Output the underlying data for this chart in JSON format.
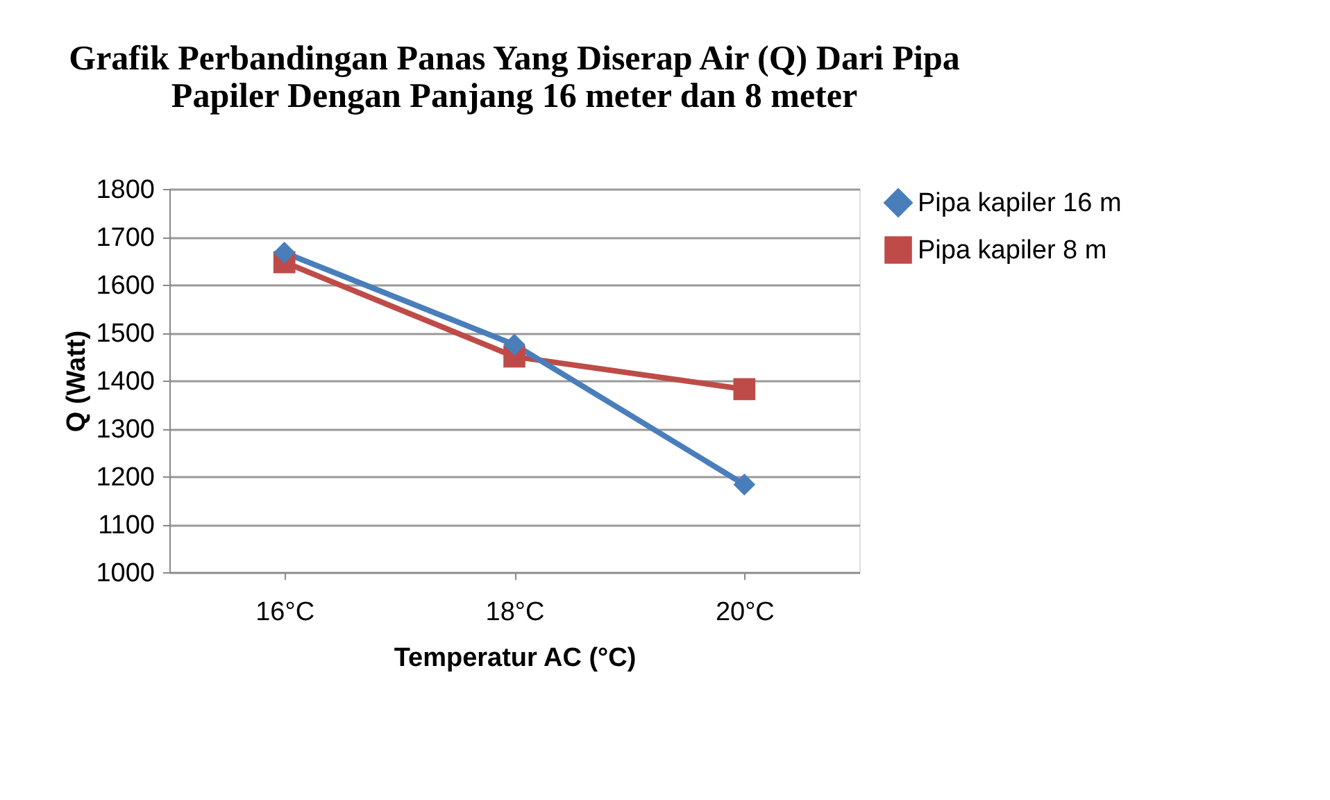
{
  "chart_data": {
    "type": "line",
    "title": [
      "Grafik Perbandingan Panas Yang Diserap Air (Q) Dari Pipa",
      "Papiler Dengan Panjang 16 meter dan 8 meter"
    ],
    "xlabel": "Temperatur AC (°C)",
    "ylabel": "Q (Watt)",
    "categories": [
      "16°C",
      "18°C",
      "20°C"
    ],
    "series": [
      {
        "name": "Pipa kapiler 16 m",
        "color": "#4a7ebb",
        "marker": "diamond",
        "values": [
          1667,
          1475,
          1183
        ]
      },
      {
        "name": "Pipa kapiler  8 m",
        "color": "#be4b48",
        "marker": "square",
        "values": [
          1647,
          1450,
          1382
        ]
      }
    ],
    "ylim": [
      1000,
      1800
    ],
    "yticks": [
      1000,
      1100,
      1200,
      1300,
      1400,
      1500,
      1600,
      1700,
      1800
    ],
    "grid": "y",
    "legend": "right"
  }
}
